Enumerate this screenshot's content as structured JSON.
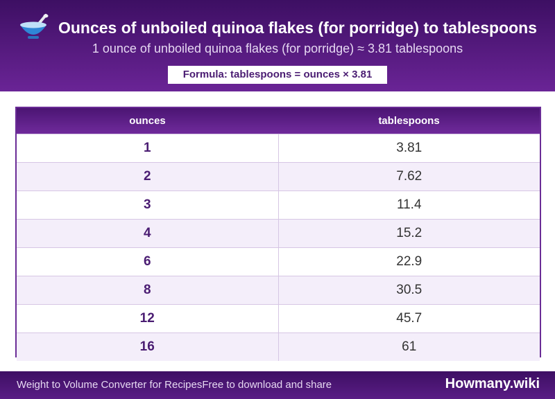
{
  "header": {
    "icon": "bowl-icon",
    "title": "Ounces of unboiled quinoa flakes (for porridge) to tablespoons",
    "subtitle": "1 ounce of unboiled quinoa flakes (for porridge) ≈ 3.81 tablespoons",
    "formula": "Formula: tablespoons = ounces × 3.81"
  },
  "table": {
    "columns": [
      "ounces",
      "tablespoons"
    ],
    "rows": [
      [
        "1",
        "3.81"
      ],
      [
        "2",
        "7.62"
      ],
      [
        "3",
        "11.4"
      ],
      [
        "4",
        "15.2"
      ],
      [
        "6",
        "22.9"
      ],
      [
        "8",
        "30.5"
      ],
      [
        "12",
        "45.7"
      ],
      [
        "16",
        "61"
      ]
    ]
  },
  "footer": {
    "left_text": "Weight to Volume Converter for RecipesFree to download and share",
    "brand": "Howmany.wiki"
  },
  "colors": {
    "header_dark": "#3d0f63",
    "header_light": "#6a2496",
    "accent_text": "#4a1c72",
    "row_alt": "#f4eefa"
  }
}
